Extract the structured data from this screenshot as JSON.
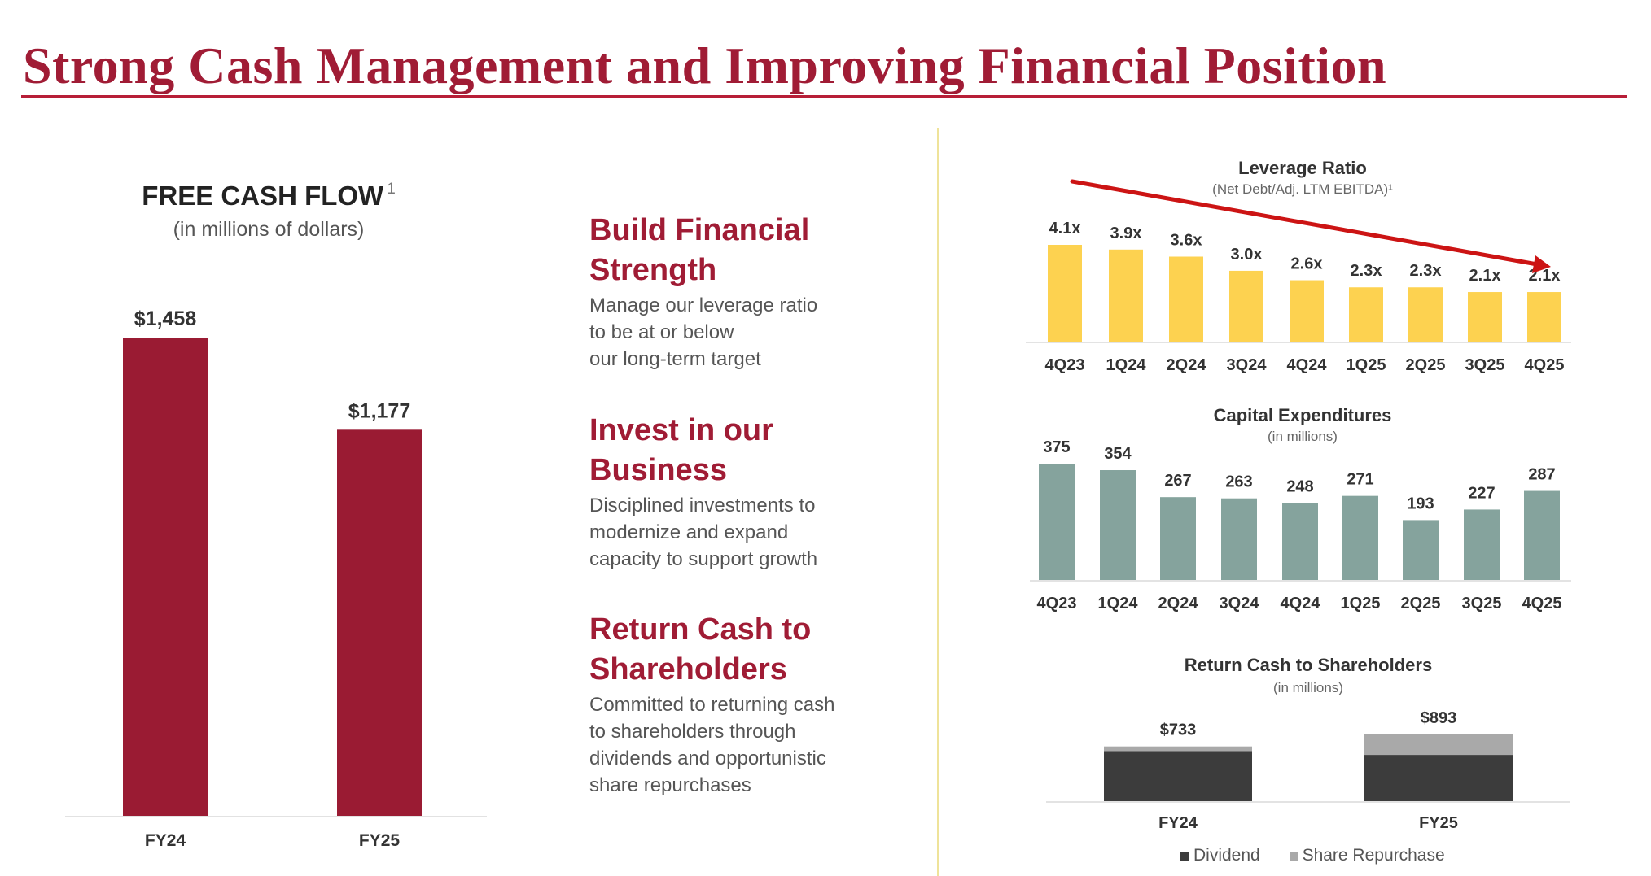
{
  "page": {
    "title": "Strong Cash Management and Improving Financial Position"
  },
  "colors": {
    "brand": "#a01c35",
    "fcf_bar": "#9a1b33",
    "leverage_bar": "#fdd250",
    "capex_bar": "#85a39d",
    "dividend": "#3c3c3c",
    "repurchase": "#a9a9a9",
    "trend_arrow": "#cc1414"
  },
  "pillars": [
    {
      "heading": "Build Financial Strength",
      "body": [
        "Manage our leverage ratio",
        "to be at or below",
        "our long-term target"
      ]
    },
    {
      "heading": "Invest in our Business",
      "body": [
        "Disciplined investments to",
        "modernize and expand",
        "capacity to support growth"
      ]
    },
    {
      "heading": "Return Cash to Shareholders",
      "body": [
        "Committed to returning cash",
        "to shareholders through",
        "dividends and opportunistic",
        "share repurchases"
      ]
    }
  ],
  "chart_data": [
    {
      "id": "fcf",
      "type": "bar",
      "title": "FREE CASH FLOW",
      "title_footnote": "1",
      "subtitle": "(in millions of dollars)",
      "categories": [
        "FY24",
        "FY25"
      ],
      "values": [
        1458,
        1177
      ],
      "value_labels": [
        "$1,458",
        "$1,177"
      ],
      "ylim": [
        0,
        1458
      ]
    },
    {
      "id": "leverage",
      "type": "bar",
      "title": "Leverage Ratio",
      "subtitle": "(Net Debt/Adj. LTM EBITDA)¹",
      "categories": [
        "4Q23",
        "1Q24",
        "2Q24",
        "3Q24",
        "4Q24",
        "1Q25",
        "2Q25",
        "3Q25",
        "4Q25"
      ],
      "values": [
        4.1,
        3.9,
        3.6,
        3.0,
        2.6,
        2.3,
        2.3,
        2.1,
        2.1
      ],
      "value_labels": [
        "4.1x",
        "3.9x",
        "3.6x",
        "3.0x",
        "2.6x",
        "2.3x",
        "2.3x",
        "2.1x",
        "2.1x"
      ],
      "ylim": [
        0,
        4.1
      ],
      "annotation": "downward trend arrow"
    },
    {
      "id": "capex",
      "type": "bar",
      "title": "Capital Expenditures",
      "subtitle": "(in millions)",
      "categories": [
        "4Q23",
        "1Q24",
        "2Q24",
        "3Q24",
        "4Q24",
        "1Q25",
        "2Q25",
        "3Q25",
        "4Q25"
      ],
      "values": [
        375,
        354,
        267,
        263,
        248,
        271,
        193,
        227,
        287
      ],
      "ylim": [
        0,
        375
      ]
    },
    {
      "id": "returns",
      "type": "bar",
      "stacked": true,
      "title": "Return Cash to Shareholders",
      "subtitle": "(in millions)",
      "categories": [
        "FY24",
        "FY25"
      ],
      "totals": [
        733,
        893
      ],
      "total_labels": [
        "$733",
        "$893"
      ],
      "series": [
        {
          "name": "Dividend",
          "values": [
            670,
            620
          ]
        },
        {
          "name": "Share Repurchase",
          "values": [
            63,
            273
          ]
        }
      ],
      "ylim": [
        0,
        893
      ],
      "legend": "bottom"
    }
  ]
}
